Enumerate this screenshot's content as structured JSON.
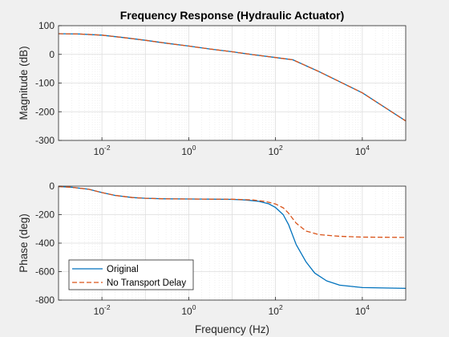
{
  "chart_data": [
    {
      "type": "line",
      "title": "Frequency Response (Hydraulic Actuator)",
      "xlabel": "",
      "ylabel": "Magnitude (dB)",
      "xscale": "log",
      "xlim": [
        0.001,
        100000
      ],
      "ylim": [
        -300,
        100
      ],
      "x_ticks": [
        {
          "base": "10",
          "exp": "-2"
        },
        {
          "base": "10",
          "exp": "0"
        },
        {
          "base": "10",
          "exp": "2"
        },
        {
          "base": "10",
          "exp": "4"
        }
      ],
      "y_ticks": [
        "100",
        "0",
        "-100",
        "-200",
        "-300"
      ],
      "grid": true,
      "colors": [
        "#0072bd",
        "#d95319"
      ],
      "series": [
        {
          "x": [
            0.001,
            0.003,
            0.01,
            0.03,
            0.1,
            0.3,
            1,
            3,
            10,
            30,
            100,
            250,
            1000,
            10000,
            100000
          ],
          "values": [
            72,
            71,
            67,
            59,
            49,
            39,
            29,
            19,
            9,
            -1,
            -11,
            -19,
            -60,
            -134,
            -232
          ]
        },
        {
          "x": [
            0.001,
            0.003,
            0.01,
            0.03,
            0.1,
            0.3,
            1,
            3,
            10,
            30,
            100,
            250,
            1000,
            10000,
            100000
          ],
          "values": [
            72,
            71,
            67,
            59,
            49,
            39,
            29,
            19,
            9,
            -1,
            -11,
            -19,
            -60,
            -134,
            -232
          ]
        }
      ]
    },
    {
      "type": "line",
      "title": "",
      "xlabel": "Frequency (Hz)",
      "ylabel": "Phase (deg)",
      "xscale": "log",
      "xlim": [
        0.001,
        100000
      ],
      "ylim": [
        -800,
        0
      ],
      "x_ticks": [
        {
          "base": "10",
          "exp": "-2"
        },
        {
          "base": "10",
          "exp": "0"
        },
        {
          "base": "10",
          "exp": "2"
        },
        {
          "base": "10",
          "exp": "4"
        }
      ],
      "y_ticks": [
        "0",
        "-200",
        "-400",
        "-600",
        "-800"
      ],
      "grid": true,
      "legend_position": "bottom-left",
      "colors": [
        "#0072bd",
        "#d95319"
      ],
      "series": [
        {
          "name": "Original",
          "x": [
            0.001,
            0.002,
            0.005,
            0.01,
            0.02,
            0.05,
            0.1,
            0.3,
            1,
            3,
            10,
            20,
            40,
            70,
            100,
            150,
            200,
            300,
            500,
            800,
            1500,
            3000,
            10000,
            100000
          ],
          "values": [
            -3,
            -8,
            -22,
            -45,
            -65,
            -80,
            -85,
            -89,
            -90,
            -91,
            -93,
            -97,
            -106,
            -124,
            -150,
            -200,
            -270,
            -410,
            -530,
            -610,
            -665,
            -695,
            -712,
            -718
          ]
        },
        {
          "name": "No Transport Delay",
          "x": [
            0.001,
            0.002,
            0.005,
            0.01,
            0.02,
            0.05,
            0.1,
            0.3,
            1,
            3,
            10,
            30,
            60,
            100,
            150,
            200,
            300,
            500,
            1000,
            3000,
            10000,
            100000
          ],
          "values": [
            -3,
            -8,
            -22,
            -45,
            -65,
            -80,
            -85,
            -89,
            -90,
            -91,
            -92,
            -97,
            -108,
            -125,
            -152,
            -190,
            -260,
            -315,
            -340,
            -352,
            -358,
            -360
          ]
        }
      ]
    }
  ]
}
